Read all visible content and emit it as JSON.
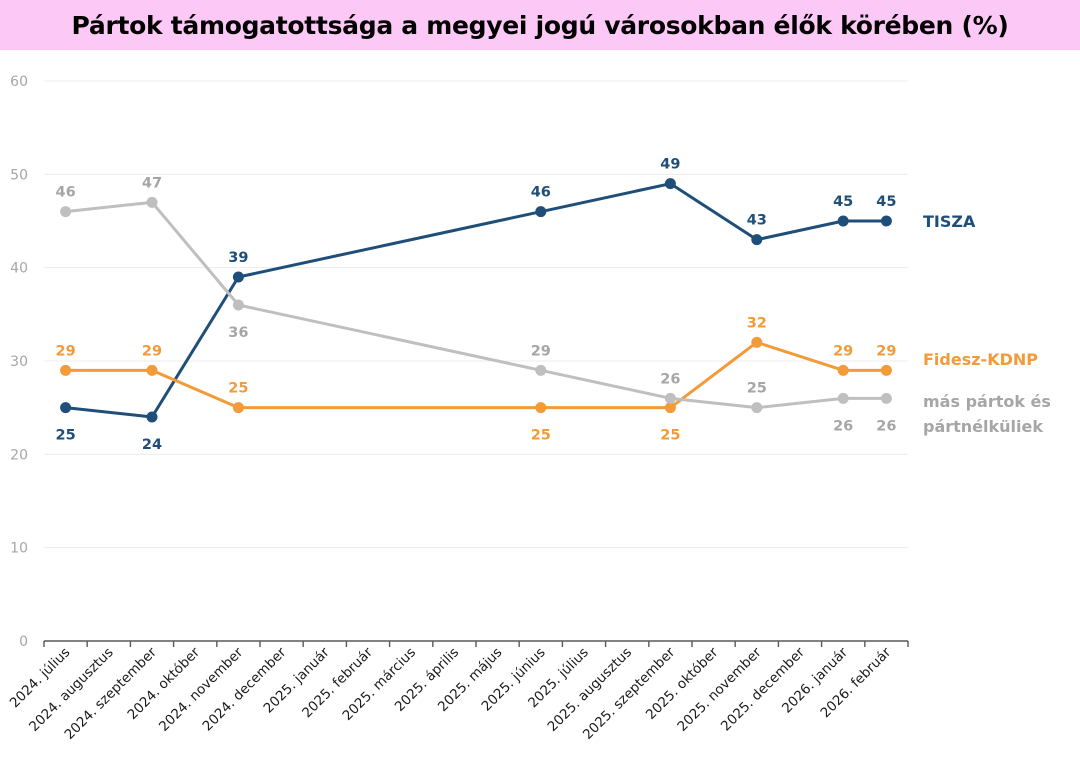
{
  "chart_data": {
    "type": "line",
    "title": "Pártok támogatottsága a megyei jogú városokban élők körében (%)",
    "xlabel": "",
    "ylabel": "",
    "ylim": [
      0,
      60
    ],
    "yticks": [
      "0",
      "10",
      "20",
      "30",
      "40",
      "50",
      "60"
    ],
    "grid": true,
    "legend_placement": "right",
    "categories": [
      "2024. július",
      "2024. augusztus",
      "2024. szeptember",
      "2024. október",
      "2024. november",
      "2024. december",
      "2025. január",
      "2025. február",
      "2025. március",
      "2025. április",
      "2025. május",
      "2025. június",
      "2025. július",
      "2025. augusztus",
      "2025. szeptember",
      "2025. október",
      "2025. november",
      "2025. december",
      "2026. január",
      "2026. február"
    ],
    "series": [
      {
        "name": "TISZA",
        "color": "#1f4e79",
        "values": [
          25,
          null,
          24,
          null,
          39,
          null,
          null,
          null,
          null,
          null,
          null,
          46,
          null,
          null,
          49,
          null,
          43,
          null,
          45,
          45
        ],
        "label_pos": [
          "below",
          null,
          "below",
          null,
          "above",
          null,
          null,
          null,
          null,
          null,
          null,
          "above",
          null,
          null,
          "above",
          null,
          "above",
          null,
          "above",
          "above"
        ]
      },
      {
        "name": "Fidesz-KDNP",
        "color": "#f29b38",
        "values": [
          29,
          null,
          29,
          null,
          25,
          null,
          null,
          null,
          null,
          null,
          null,
          25,
          null,
          null,
          25,
          null,
          32,
          null,
          29,
          29
        ],
        "label_pos": [
          "above",
          null,
          "above",
          null,
          "above",
          null,
          null,
          null,
          null,
          null,
          null,
          "below",
          null,
          null,
          "below",
          null,
          "above",
          null,
          "above",
          "above"
        ]
      },
      {
        "name": "más pártok és pártnélküliek",
        "legend_lines": [
          "más pártok és",
          "pártnélküliek"
        ],
        "color": "#bfbfbf",
        "label_color": "#a6a6a6",
        "values": [
          46,
          null,
          47,
          null,
          36,
          null,
          null,
          null,
          null,
          null,
          null,
          29,
          null,
          null,
          26,
          null,
          25,
          null,
          26,
          26
        ],
        "label_pos": [
          "above",
          null,
          "above",
          null,
          "below",
          null,
          null,
          null,
          null,
          null,
          null,
          "above",
          null,
          null,
          "above",
          null,
          "above",
          null,
          "below",
          "below"
        ]
      }
    ]
  }
}
